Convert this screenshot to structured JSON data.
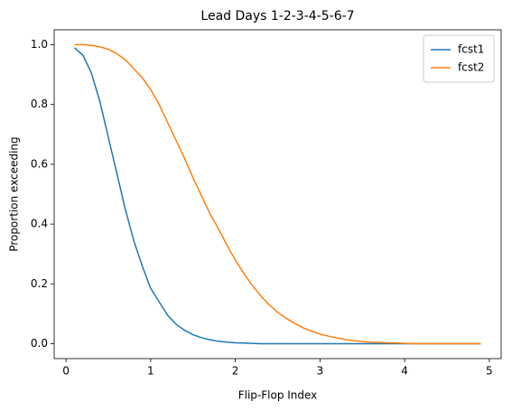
{
  "chart_data": {
    "type": "line",
    "title": "Lead Days 1-2-3-4-5-6-7",
    "x_label": "Flip-Flop Index",
    "y_label": "Proportion exceeding",
    "x": [
      0.1,
      0.2,
      0.3,
      0.4,
      0.5,
      0.6,
      0.7,
      0.8,
      0.9,
      1.0,
      1.1,
      1.2,
      1.3,
      1.4,
      1.5,
      1.6,
      1.7,
      1.8,
      1.9,
      2.0,
      2.1,
      2.2,
      2.3,
      2.4,
      2.5,
      2.6,
      2.7,
      2.8,
      2.9,
      3.0,
      3.1,
      3.2,
      3.3,
      3.4,
      3.5,
      3.6,
      3.7,
      3.8,
      3.9,
      4.0,
      4.1,
      4.2,
      4.3,
      4.4,
      4.5,
      4.6,
      4.7,
      4.8,
      4.9
    ],
    "series": [
      {
        "name": "fcst1",
        "color": "#1f77b4",
        "values": [
          0.99,
          0.965,
          0.905,
          0.81,
          0.69,
          0.57,
          0.45,
          0.345,
          0.26,
          0.185,
          0.14,
          0.095,
          0.065,
          0.045,
          0.03,
          0.02,
          0.013,
          0.008,
          0.005,
          0.003,
          0.002,
          0.001,
          0,
          0,
          0,
          0,
          0,
          0,
          0,
          0,
          0,
          0,
          0,
          0,
          0,
          0,
          0,
          0,
          0,
          0,
          0,
          0,
          0,
          0,
          0,
          0,
          0,
          0,
          0
        ]
      },
      {
        "name": "fcst2",
        "color": "#ff7f0e",
        "values": [
          1.0,
          1.0,
          0.998,
          0.993,
          0.985,
          0.97,
          0.95,
          0.92,
          0.89,
          0.85,
          0.8,
          0.74,
          0.68,
          0.62,
          0.555,
          0.495,
          0.435,
          0.385,
          0.33,
          0.28,
          0.235,
          0.195,
          0.16,
          0.13,
          0.105,
          0.085,
          0.068,
          0.053,
          0.042,
          0.032,
          0.025,
          0.019,
          0.014,
          0.01,
          0.007,
          0.005,
          0.004,
          0.003,
          0.002,
          0.001,
          0,
          0,
          0,
          0,
          0,
          0,
          0,
          0,
          0
        ]
      }
    ],
    "xlim": [
      -0.14,
      5.14
    ],
    "ylim": [
      -0.05,
      1.05
    ],
    "xticks": [
      0,
      1,
      2,
      3,
      4,
      5
    ],
    "yticks": [
      {
        "value": 0,
        "label": "0.0"
      },
      0.2,
      0.4,
      0.6,
      0.8,
      {
        "value": 1,
        "label": "1.0"
      }
    ],
    "legend": "upper right"
  }
}
